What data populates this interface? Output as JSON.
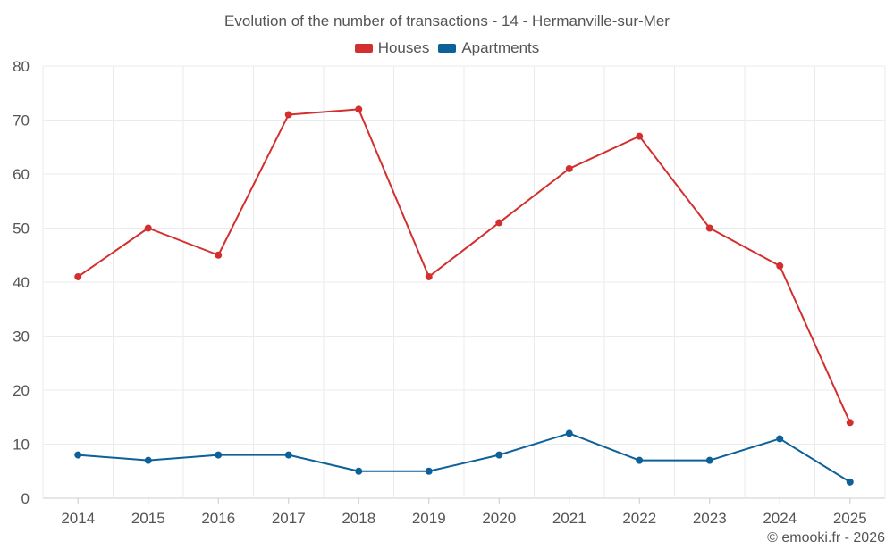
{
  "chart_data": {
    "type": "line",
    "title": "Evolution of the number of transactions - 14 - Hermanville-sur-Mer",
    "categories": [
      "2014",
      "2015",
      "2016",
      "2017",
      "2018",
      "2019",
      "2020",
      "2021",
      "2022",
      "2023",
      "2024",
      "2025"
    ],
    "series": [
      {
        "name": "Houses",
        "color": "#d32f2f",
        "values": [
          41,
          50,
          45,
          71,
          72,
          41,
          51,
          61,
          67,
          50,
          43,
          14
        ]
      },
      {
        "name": "Apartments",
        "color": "#0d6199",
        "values": [
          8,
          7,
          8,
          8,
          5,
          5,
          8,
          12,
          7,
          7,
          11,
          3
        ]
      }
    ],
    "ylim": [
      0,
      80
    ],
    "yticks": [
      0,
      10,
      20,
      30,
      40,
      50,
      60,
      70,
      80
    ],
    "xlabel": "",
    "ylabel": "",
    "legend_position": "top-center",
    "grid": true
  },
  "credit": "© emooki.fr - 2026"
}
